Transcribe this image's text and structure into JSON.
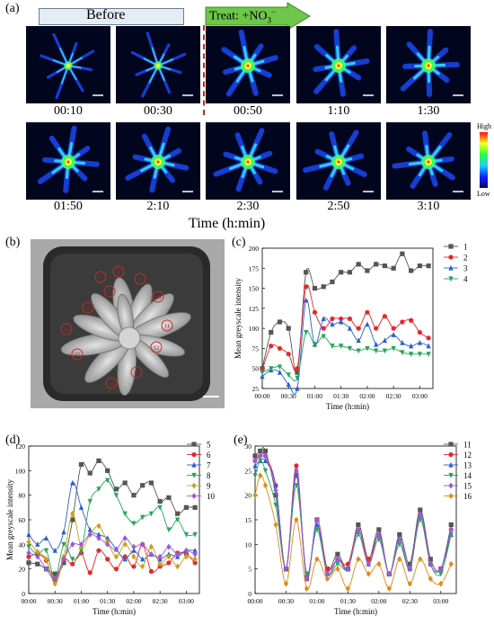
{
  "panel_a": {
    "label": "(a)",
    "before_label": "Before",
    "treat_label": "Treat: +NO",
    "treat_sub": "3",
    "treat_sup": "−",
    "time_labels_row1": [
      "00:10",
      "00:30",
      "00:50",
      "1:10",
      "1:30"
    ],
    "time_labels_row2": [
      "01:50",
      "2:10",
      "2:30",
      "2:50",
      "3:10"
    ],
    "xlabel": "Time (h:min)",
    "colorbar_high": "High",
    "colorbar_low": "Low"
  },
  "panel_b": {
    "label": "(b)",
    "leaf_numbers": [
      "5",
      "6",
      "7",
      "8",
      "9",
      "10",
      "11",
      "12",
      "13",
      "14",
      "15",
      "16"
    ]
  },
  "chart_data": [
    {
      "id": "c",
      "label": "(c)",
      "type": "line",
      "xlabel": "Time (h:min)",
      "ylabel": "Mean greyscale intensity",
      "xlim": [
        0,
        195
      ],
      "ylim": [
        25,
        200
      ],
      "yticks": [
        25,
        50,
        75,
        100,
        125,
        150,
        175,
        200
      ],
      "xticks": [
        0,
        30,
        60,
        90,
        120,
        150,
        180
      ],
      "xtick_labels": [
        "00:00",
        "00:30",
        "01:00",
        "01:30",
        "02:00",
        "02:30",
        "03:00"
      ],
      "series": [
        {
          "name": "1",
          "color": "#555555",
          "marker": "square",
          "x": [
            0,
            10,
            20,
            30,
            40,
            50,
            60,
            70,
            80,
            90,
            100,
            110,
            120,
            130,
            140,
            150,
            160,
            170,
            180,
            190
          ],
          "y": [
            50,
            95,
            108,
            100,
            45,
            170,
            150,
            152,
            158,
            170,
            170,
            180,
            172,
            180,
            178,
            175,
            193,
            172,
            178,
            178
          ]
        },
        {
          "name": "2",
          "color": "#e8262a",
          "marker": "circle",
          "x": [
            0,
            10,
            20,
            30,
            40,
            50,
            60,
            70,
            80,
            90,
            100,
            110,
            120,
            130,
            140,
            150,
            160,
            170,
            180,
            190
          ],
          "y": [
            48,
            78,
            75,
            68,
            50,
            152,
            120,
            100,
            112,
            112,
            112,
            100,
            120,
            100,
            115,
            100,
            108,
            110,
            95,
            88
          ]
        },
        {
          "name": "3",
          "color": "#2a5cd6",
          "marker": "triangle",
          "x": [
            0,
            10,
            20,
            30,
            40,
            50,
            60,
            70,
            80,
            90,
            100,
            110,
            120,
            130,
            140,
            150,
            160,
            170,
            180,
            190
          ],
          "y": [
            40,
            48,
            45,
            30,
            25,
            135,
            80,
            112,
            105,
            108,
            100,
            85,
            105,
            80,
            85,
            92,
            82,
            78,
            82,
            78
          ]
        },
        {
          "name": "4",
          "color": "#22a658",
          "marker": "triangle-down",
          "x": [
            0,
            10,
            20,
            30,
            40,
            50,
            60,
            70,
            80,
            90,
            100,
            110,
            120,
            130,
            140,
            150,
            160,
            170,
            180,
            190
          ],
          "y": [
            45,
            50,
            52,
            42,
            38,
            95,
            80,
            90,
            78,
            78,
            75,
            72,
            75,
            72,
            72,
            75,
            70,
            68,
            68,
            68
          ]
        }
      ]
    },
    {
      "id": "d",
      "label": "(d)",
      "type": "line",
      "xlabel": "Time (h:min)",
      "ylabel": "Mean greyscale intensity",
      "xlim": [
        0,
        195
      ],
      "ylim": [
        0,
        120
      ],
      "yticks": [
        0,
        20,
        40,
        60,
        80,
        100,
        120
      ],
      "xticks": [
        0,
        30,
        60,
        90,
        120,
        150,
        180
      ],
      "xtick_labels": [
        "00:00",
        "00:30",
        "01:00",
        "01:30",
        "02:00",
        "02:30",
        "03:00"
      ],
      "series": [
        {
          "name": "5",
          "color": "#555555",
          "marker": "square",
          "x": [
            0,
            10,
            20,
            30,
            40,
            50,
            60,
            70,
            80,
            90,
            100,
            110,
            120,
            130,
            140,
            150,
            160,
            170,
            180,
            190
          ],
          "y": [
            25,
            24,
            20,
            16,
            25,
            60,
            105,
            98,
            108,
            100,
            85,
            90,
            80,
            88,
            90,
            75,
            78,
            65,
            70,
            70
          ]
        },
        {
          "name": "6",
          "color": "#e8262a",
          "marker": "circle",
          "x": [
            0,
            10,
            20,
            30,
            40,
            50,
            60,
            70,
            80,
            90,
            100,
            110,
            120,
            130,
            140,
            150,
            160,
            170,
            180,
            190
          ],
          "y": [
            30,
            32,
            27,
            10,
            28,
            24,
            33,
            17,
            35,
            28,
            20,
            30,
            22,
            40,
            18,
            22,
            25,
            33,
            32,
            25
          ]
        },
        {
          "name": "7",
          "color": "#2a5cd6",
          "marker": "triangle",
          "x": [
            0,
            10,
            20,
            30,
            40,
            50,
            60,
            70,
            80,
            90,
            100,
            110,
            120,
            130,
            140,
            150,
            160,
            170,
            180,
            190
          ],
          "y": [
            48,
            40,
            45,
            35,
            50,
            90,
            70,
            52,
            48,
            45,
            36,
            28,
            35,
            28,
            32,
            28,
            32,
            30,
            35,
            35
          ]
        },
        {
          "name": "8",
          "color": "#22a658",
          "marker": "triangle-down",
          "x": [
            0,
            10,
            20,
            30,
            40,
            50,
            60,
            70,
            80,
            90,
            100,
            110,
            120,
            130,
            140,
            150,
            160,
            170,
            180,
            190
          ],
          "y": [
            38,
            32,
            35,
            12,
            40,
            28,
            35,
            75,
            85,
            92,
            80,
            65,
            57,
            62,
            65,
            70,
            52,
            60,
            48,
            48
          ]
        },
        {
          "name": "9",
          "color": "#c9a21a",
          "marker": "diamond",
          "x": [
            0,
            10,
            20,
            30,
            40,
            50,
            60,
            70,
            80,
            90,
            100,
            110,
            120,
            130,
            140,
            150,
            160,
            170,
            180,
            190
          ],
          "y": [
            42,
            34,
            28,
            8,
            30,
            65,
            38,
            48,
            55,
            42,
            30,
            40,
            30,
            22,
            38,
            24,
            30,
            22,
            30,
            28
          ]
        },
        {
          "name": "10",
          "color": "#9a5ad6",
          "marker": "diamond",
          "x": [
            0,
            10,
            20,
            30,
            40,
            50,
            60,
            70,
            80,
            90,
            100,
            110,
            120,
            130,
            140,
            150,
            160,
            170,
            180,
            190
          ],
          "y": [
            33,
            30,
            20,
            12,
            28,
            40,
            40,
            48,
            45,
            40,
            36,
            45,
            38,
            40,
            32,
            30,
            38,
            32,
            35,
            32
          ]
        }
      ]
    },
    {
      "id": "e",
      "label": "(e)",
      "type": "line",
      "xlabel": "Time (h:min)",
      "ylabel": "",
      "xlim": [
        0,
        195
      ],
      "ylim": [
        0,
        30
      ],
      "yticks": [
        0,
        5,
        10,
        15,
        20,
        25,
        30
      ],
      "xticks": [
        0,
        30,
        60,
        90,
        120,
        150,
        180
      ],
      "xtick_labels": [
        "00:00",
        "00:30",
        "01:00",
        "01:30",
        "02:00",
        "02:30",
        "03:00"
      ],
      "series": [
        {
          "name": "11",
          "color": "#555555",
          "marker": "square",
          "x": [
            0,
            5,
            10,
            20,
            30,
            40,
            50,
            60,
            70,
            80,
            90,
            100,
            110,
            120,
            130,
            140,
            150,
            160,
            170,
            180,
            190
          ],
          "y": [
            28,
            29,
            29,
            20,
            5,
            24,
            3,
            15,
            5,
            8,
            5,
            14,
            7,
            13,
            4,
            12,
            6,
            17,
            7,
            5,
            14
          ]
        },
        {
          "name": "12",
          "color": "#e8262a",
          "marker": "circle",
          "x": [
            0,
            5,
            10,
            20,
            30,
            40,
            50,
            60,
            70,
            80,
            90,
            100,
            110,
            120,
            130,
            140,
            150,
            160,
            170,
            180,
            190
          ],
          "y": [
            27,
            28,
            28,
            22,
            5,
            26,
            3,
            15,
            5,
            7,
            6,
            13,
            7,
            12,
            4,
            11,
            5,
            16,
            6,
            5,
            13
          ]
        },
        {
          "name": "13",
          "color": "#2a5cd6",
          "marker": "triangle",
          "x": [
            0,
            5,
            10,
            20,
            30,
            40,
            50,
            60,
            70,
            80,
            90,
            100,
            110,
            120,
            130,
            140,
            150,
            160,
            170,
            180,
            190
          ],
          "y": [
            26,
            27,
            27,
            22,
            5,
            24,
            4,
            14,
            4,
            7,
            5,
            13,
            6,
            12,
            4,
            11,
            5,
            16,
            6,
            5,
            12
          ]
        },
        {
          "name": "14",
          "color": "#22a658",
          "marker": "triangle-down",
          "x": [
            0,
            5,
            10,
            20,
            30,
            40,
            50,
            60,
            70,
            80,
            90,
            100,
            110,
            120,
            130,
            140,
            150,
            160,
            170,
            180,
            190
          ],
          "y": [
            24,
            27,
            25,
            18,
            5,
            22,
            4,
            13,
            4,
            6,
            5,
            12,
            6,
            11,
            4,
            10,
            5,
            15,
            6,
            4,
            12
          ]
        },
        {
          "name": "15",
          "color": "#9a5ad6",
          "marker": "diamond",
          "x": [
            0,
            5,
            10,
            20,
            30,
            40,
            50,
            60,
            70,
            80,
            90,
            100,
            110,
            120,
            130,
            140,
            150,
            160,
            170,
            180,
            190
          ],
          "y": [
            27,
            28,
            28,
            21,
            5,
            25,
            3,
            15,
            4,
            7,
            5,
            13,
            6,
            12,
            4,
            11,
            5,
            16,
            6,
            5,
            13
          ]
        },
        {
          "name": "16",
          "color": "#e08a12",
          "marker": "diamond",
          "x": [
            0,
            5,
            10,
            20,
            30,
            40,
            50,
            60,
            70,
            80,
            90,
            100,
            110,
            120,
            130,
            140,
            150,
            160,
            170,
            180,
            190
          ],
          "y": [
            20,
            24,
            22,
            14,
            2,
            15,
            1,
            7,
            3,
            5,
            1,
            7,
            4,
            6,
            1,
            7,
            2,
            7,
            3,
            2,
            6
          ]
        }
      ]
    }
  ]
}
